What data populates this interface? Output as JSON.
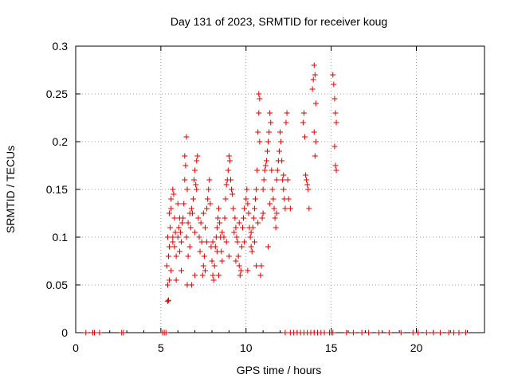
{
  "chart_data": {
    "type": "scatter",
    "title": "Day 131 of 2023, SRMTID for receiver koug",
    "xlabel": "GPS time / hours",
    "ylabel": "SRMTID / TECUs",
    "xlim": [
      0,
      24
    ],
    "ylim": [
      0,
      0.3
    ],
    "xticks": [
      0,
      5,
      10,
      15,
      20
    ],
    "xtick_labels": [
      "0",
      "5",
      "10",
      "15",
      "20"
    ],
    "yticks": [
      0,
      0.05,
      0.1,
      0.15,
      0.2,
      0.25,
      0.3
    ],
    "ytick_labels": [
      "0",
      "0.05",
      "0.1",
      "0.15",
      "0.2",
      "0.25",
      "0.3"
    ],
    "grid": true,
    "marker": "+",
    "color": "#e00000",
    "series": [
      {
        "name": "SRMTID",
        "points": [
          [
            0.6,
            0
          ],
          [
            1.0,
            0
          ],
          [
            1.1,
            0
          ],
          [
            1.4,
            0
          ],
          [
            2.7,
            0
          ],
          [
            2.8,
            0
          ],
          [
            5.1,
            0
          ],
          [
            5.2,
            0
          ],
          [
            5.3,
            0
          ],
          [
            12.3,
            0
          ],
          [
            12.6,
            0
          ],
          [
            12.8,
            0
          ],
          [
            13.0,
            0
          ],
          [
            13.2,
            0
          ],
          [
            13.4,
            0
          ],
          [
            13.6,
            0
          ],
          [
            13.8,
            0
          ],
          [
            14.0,
            0
          ],
          [
            14.2,
            0
          ],
          [
            14.4,
            0
          ],
          [
            14.6,
            0
          ],
          [
            14.9,
            0
          ],
          [
            15.0,
            0
          ],
          [
            15.1,
            0
          ],
          [
            15.9,
            0
          ],
          [
            16.3,
            0
          ],
          [
            16.8,
            0
          ],
          [
            17.2,
            0
          ],
          [
            17.8,
            0
          ],
          [
            18.4,
            0
          ],
          [
            19.1,
            0
          ],
          [
            19.8,
            0
          ],
          [
            20.1,
            0
          ],
          [
            20.6,
            0
          ],
          [
            21.0,
            0
          ],
          [
            21.4,
            0
          ],
          [
            21.9,
            0
          ],
          [
            22.2,
            0
          ],
          [
            22.5,
            0
          ],
          [
            22.9,
            0
          ],
          [
            5.4,
            0.033
          ],
          [
            5.45,
            0.034
          ],
          [
            5.4,
            0.05
          ],
          [
            5.5,
            0.055
          ],
          [
            5.35,
            0.07
          ],
          [
            5.45,
            0.08
          ],
          [
            5.5,
            0.09
          ],
          [
            5.4,
            0.1
          ],
          [
            5.55,
            0.11
          ],
          [
            5.5,
            0.125
          ],
          [
            5.6,
            0.13
          ],
          [
            5.6,
            0.14
          ],
          [
            5.7,
            0.15
          ],
          [
            5.75,
            0.145
          ],
          [
            5.8,
            0.12
          ],
          [
            5.7,
            0.1
          ],
          [
            5.8,
            0.09
          ],
          [
            5.9,
            0.08
          ],
          [
            6.0,
            0.1
          ],
          [
            6.05,
            0.11
          ],
          [
            6.1,
            0.12
          ],
          [
            6.0,
            0.135
          ],
          [
            6.1,
            0.085
          ],
          [
            6.2,
            0.095
          ],
          [
            6.3,
            0.12
          ],
          [
            6.35,
            0.135
          ],
          [
            6.4,
            0.16
          ],
          [
            6.45,
            0.175
          ],
          [
            6.4,
            0.185
          ],
          [
            6.5,
            0.205
          ],
          [
            6.55,
            0.15
          ],
          [
            6.5,
            0.1
          ],
          [
            6.6,
            0.08
          ],
          [
            6.55,
            0.05
          ],
          [
            6.7,
            0.09
          ],
          [
            6.75,
            0.11
          ],
          [
            6.8,
            0.13
          ],
          [
            6.85,
            0.125
          ],
          [
            6.9,
            0.14
          ],
          [
            6.95,
            0.16
          ],
          [
            7.0,
            0.17
          ],
          [
            7.05,
            0.155
          ],
          [
            7.1,
            0.18
          ],
          [
            7.15,
            0.185
          ],
          [
            7.1,
            0.15
          ],
          [
            7.2,
            0.12
          ],
          [
            7.25,
            0.1
          ],
          [
            7.3,
            0.085
          ],
          [
            7.4,
            0.095
          ],
          [
            7.45,
            0.06
          ],
          [
            7.5,
            0.07
          ],
          [
            7.55,
            0.08
          ],
          [
            7.6,
            0.11
          ],
          [
            7.7,
            0.13
          ],
          [
            7.75,
            0.14
          ],
          [
            7.8,
            0.15
          ],
          [
            7.85,
            0.16
          ],
          [
            7.9,
            0.135
          ],
          [
            7.95,
            0.09
          ],
          [
            8.0,
            0.075
          ],
          [
            8.05,
            0.06
          ],
          [
            8.1,
            0.055
          ],
          [
            8.15,
            0.07
          ],
          [
            8.2,
            0.09
          ],
          [
            8.25,
            0.1
          ],
          [
            8.3,
            0.11
          ],
          [
            8.35,
            0.12
          ],
          [
            8.4,
            0.13
          ],
          [
            8.45,
            0.115
          ],
          [
            8.5,
            0.1
          ],
          [
            8.55,
            0.085
          ],
          [
            8.6,
            0.075
          ],
          [
            8.7,
            0.1
          ],
          [
            8.75,
            0.12
          ],
          [
            8.8,
            0.14
          ],
          [
            8.85,
            0.155
          ],
          [
            8.9,
            0.16
          ],
          [
            8.95,
            0.17
          ],
          [
            9.0,
            0.185
          ],
          [
            9.05,
            0.18
          ],
          [
            9.1,
            0.16
          ],
          [
            9.15,
            0.15
          ],
          [
            9.2,
            0.145
          ],
          [
            9.25,
            0.13
          ],
          [
            9.35,
            0.12
          ],
          [
            9.4,
            0.11
          ],
          [
            9.45,
            0.1
          ],
          [
            9.5,
            0.095
          ],
          [
            9.55,
            0.08
          ],
          [
            9.6,
            0.07
          ],
          [
            9.65,
            0.06
          ],
          [
            9.7,
            0.065
          ],
          [
            9.75,
            0.09
          ],
          [
            9.8,
            0.11
          ],
          [
            9.85,
            0.12
          ],
          [
            9.9,
            0.13
          ],
          [
            10.0,
            0.14
          ],
          [
            10.05,
            0.15
          ],
          [
            10.1,
            0.135
          ],
          [
            10.15,
            0.125
          ],
          [
            10.2,
            0.11
          ],
          [
            10.25,
            0.1
          ],
          [
            10.3,
            0.09
          ],
          [
            10.35,
            0.085
          ],
          [
            10.4,
            0.11
          ],
          [
            10.45,
            0.12
          ],
          [
            10.5,
            0.13
          ],
          [
            10.55,
            0.14
          ],
          [
            10.6,
            0.15
          ],
          [
            10.65,
            0.17
          ],
          [
            10.7,
            0.21
          ],
          [
            10.75,
            0.23
          ],
          [
            10.75,
            0.25
          ],
          [
            10.8,
            0.245
          ],
          [
            10.8,
            0.2
          ],
          [
            10.85,
            0.06
          ],
          [
            10.9,
            0.07
          ],
          [
            10.95,
            0.12
          ],
          [
            11.0,
            0.15
          ],
          [
            11.05,
            0.16
          ],
          [
            11.1,
            0.17
          ],
          [
            11.15,
            0.175
          ],
          [
            11.2,
            0.18
          ],
          [
            11.25,
            0.19
          ],
          [
            11.3,
            0.2
          ],
          [
            11.35,
            0.21
          ],
          [
            11.4,
            0.23
          ],
          [
            11.45,
            0.22
          ],
          [
            11.5,
            0.17
          ],
          [
            11.55,
            0.15
          ],
          [
            11.6,
            0.14
          ],
          [
            11.65,
            0.13
          ],
          [
            11.7,
            0.12
          ],
          [
            11.75,
            0.11
          ],
          [
            11.8,
            0.16
          ],
          [
            11.85,
            0.17
          ],
          [
            11.9,
            0.18
          ],
          [
            11.95,
            0.19
          ],
          [
            12.0,
            0.21
          ],
          [
            12.05,
            0.2
          ],
          [
            12.1,
            0.18
          ],
          [
            12.15,
            0.16
          ],
          [
            12.2,
            0.15
          ],
          [
            12.25,
            0.14
          ],
          [
            12.3,
            0.13
          ],
          [
            12.35,
            0.22
          ],
          [
            12.4,
            0.23
          ],
          [
            12.45,
            0.16
          ],
          [
            12.5,
            0.14
          ],
          [
            12.6,
            0.13
          ],
          [
            13.35,
            0.22
          ],
          [
            13.4,
            0.23
          ],
          [
            13.45,
            0.205
          ],
          [
            13.5,
            0.165
          ],
          [
            13.55,
            0.16
          ],
          [
            13.6,
            0.155
          ],
          [
            13.65,
            0.15
          ],
          [
            13.7,
            0.13
          ],
          [
            13.9,
            0.255
          ],
          [
            13.95,
            0.265
          ],
          [
            14.0,
            0.28
          ],
          [
            14.05,
            0.27
          ],
          [
            14.1,
            0.24
          ],
          [
            14.0,
            0.21
          ],
          [
            14.1,
            0.2
          ],
          [
            14.05,
            0.185
          ],
          [
            15.1,
            0.27
          ],
          [
            15.15,
            0.26
          ],
          [
            15.2,
            0.245
          ],
          [
            15.25,
            0.23
          ],
          [
            15.3,
            0.22
          ],
          [
            15.2,
            0.195
          ],
          [
            15.25,
            0.175
          ],
          [
            15.3,
            0.17
          ],
          [
            5.6,
            0.065
          ],
          [
            5.9,
            0.055
          ],
          [
            6.2,
            0.065
          ],
          [
            6.8,
            0.05
          ],
          [
            7.0,
            0.06
          ],
          [
            7.6,
            0.065
          ],
          [
            8.4,
            0.06
          ],
          [
            9.0,
            0.08
          ],
          [
            9.4,
            0.075
          ],
          [
            10.1,
            0.065
          ],
          [
            10.6,
            0.07
          ],
          [
            11.3,
            0.09
          ],
          [
            5.7,
            0.095
          ],
          [
            5.85,
            0.105
          ],
          [
            6.15,
            0.105
          ],
          [
            6.25,
            0.115
          ],
          [
            6.6,
            0.115
          ],
          [
            6.7,
            0.125
          ],
          [
            7.0,
            0.105
          ],
          [
            7.35,
            0.115
          ],
          [
            7.5,
            0.125
          ],
          [
            7.7,
            0.095
          ],
          [
            8.05,
            0.095
          ],
          [
            8.3,
            0.085
          ],
          [
            8.6,
            0.105
          ],
          [
            8.85,
            0.095
          ],
          [
            9.3,
            0.105
          ],
          [
            9.6,
            0.115
          ],
          [
            9.9,
            0.095
          ],
          [
            10.3,
            0.105
          ],
          [
            10.5,
            0.095
          ],
          [
            10.7,
            0.115
          ],
          [
            11.0,
            0.125
          ],
          [
            11.4,
            0.135
          ],
          [
            11.8,
            0.125
          ],
          [
            12.2,
            0.165
          ]
        ]
      }
    ]
  }
}
